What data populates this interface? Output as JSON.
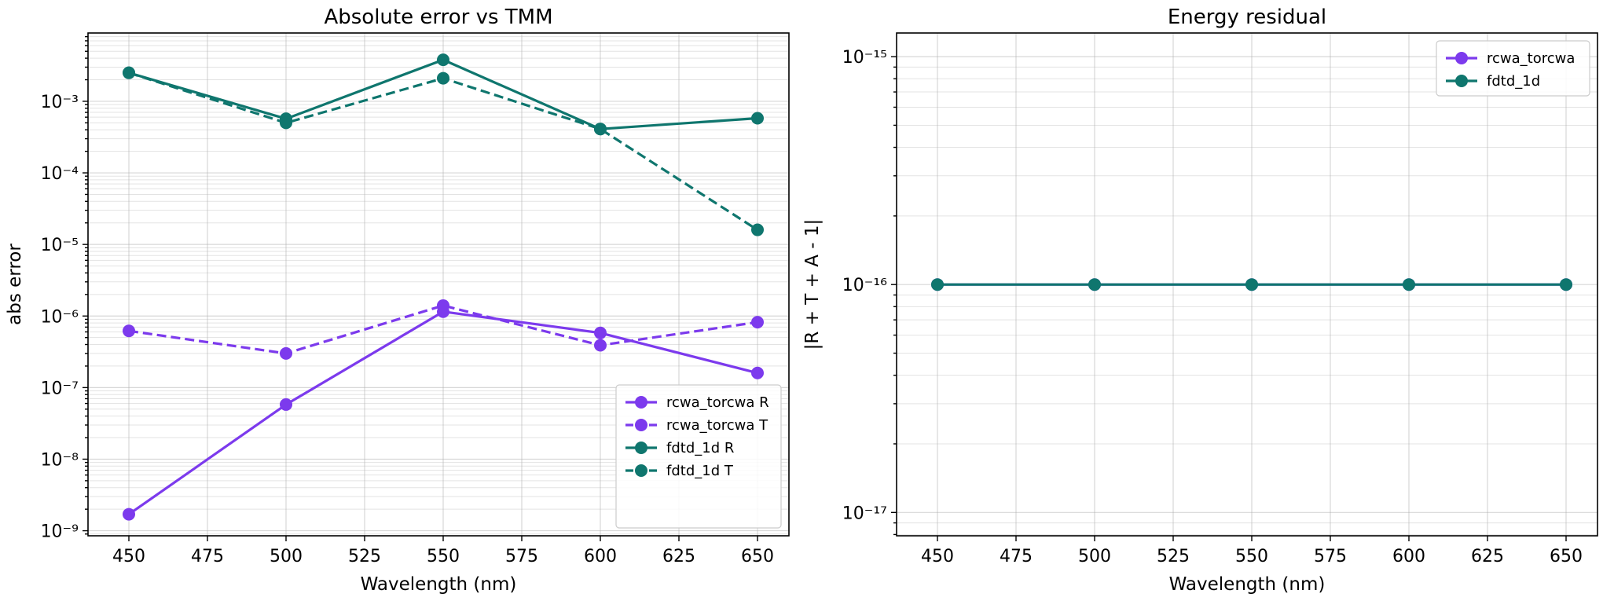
{
  "chart_data": [
    {
      "type": "line",
      "title": "Absolute error vs TMM",
      "xlabel": "Wavelength (nm)",
      "ylabel": "abs error",
      "yscale": "log",
      "xlim": [
        437,
        660
      ],
      "ylim": [
        8.5e-10,
        0.009
      ],
      "xticks": [
        450,
        475,
        500,
        525,
        550,
        575,
        600,
        625,
        650
      ],
      "yticks": [
        1e-09,
        1e-08,
        1e-07,
        1e-06,
        1e-05,
        0.0001,
        0.001
      ],
      "grid": true,
      "legend_position": "lower-right",
      "x": [
        450,
        500,
        550,
        600,
        650
      ],
      "series": [
        {
          "name": "rcwa_torcwa R",
          "color": "#7c3aed",
          "dash": "solid",
          "values": [
            1.7e-09,
            5.8e-08,
            1.15e-06,
            5.8e-07,
            1.6e-07
          ]
        },
        {
          "name": "rcwa_torcwa T",
          "color": "#7c3aed",
          "dash": "dashed",
          "values": [
            6.2e-07,
            3e-07,
            1.4e-06,
            3.9e-07,
            8.2e-07
          ]
        },
        {
          "name": "fdtd_1d R",
          "color": "#0f766e",
          "dash": "solid",
          "values": [
            0.0025,
            0.00057,
            0.0038,
            0.00041,
            0.00058
          ]
        },
        {
          "name": "fdtd_1d T",
          "color": "#0f766e",
          "dash": "dashed",
          "values": [
            0.0025,
            0.0005,
            0.0021,
            0.00041,
            1.6e-05
          ]
        }
      ]
    },
    {
      "type": "line",
      "title": "Energy residual",
      "xlabel": "Wavelength (nm)",
      "ylabel": "|R + T + A - 1|",
      "yscale": "log",
      "xlim": [
        437,
        660
      ],
      "ylim": [
        7.9e-18,
        1.27e-15
      ],
      "xticks": [
        450,
        475,
        500,
        525,
        550,
        575,
        600,
        625,
        650
      ],
      "yticks": [
        1e-17,
        1e-16,
        1e-15
      ],
      "grid": true,
      "legend_position": "upper-right",
      "x": [
        450,
        500,
        550,
        600,
        650
      ],
      "series": [
        {
          "name": "rcwa_torcwa",
          "color": "#7c3aed",
          "dash": "solid",
          "values": [
            1e-16,
            1e-16,
            1e-16,
            1e-16,
            1e-16
          ]
        },
        {
          "name": "fdtd_1d",
          "color": "#0f766e",
          "dash": "solid",
          "values": [
            1e-16,
            1e-16,
            1e-16,
            1e-16,
            1e-16
          ]
        }
      ]
    }
  ]
}
